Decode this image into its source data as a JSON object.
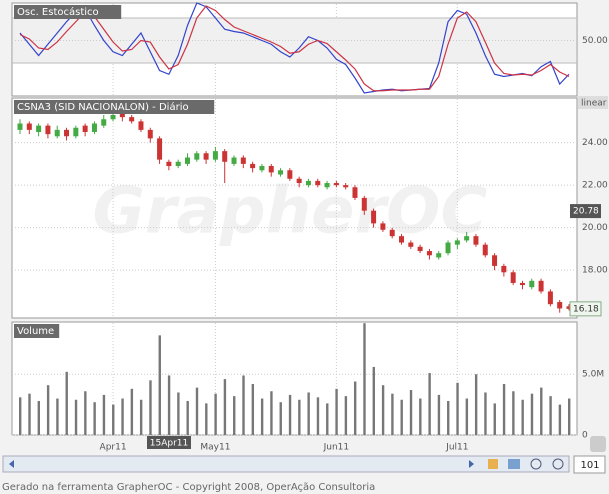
{
  "chart_data": [
    {
      "type": "line",
      "title": "Osc. Estocástico",
      "ylim": [
        -24,
        100
      ],
      "yticks": [
        {
          "value": 50,
          "label": "50.00"
        }
      ],
      "levels": [
        20,
        80
      ],
      "grid": true,
      "series": [
        {
          "name": "%K",
          "color": "#3344cc",
          "values": [
            60,
            45,
            30,
            45,
            60,
            75,
            88,
            92,
            70,
            50,
            35,
            30,
            45,
            60,
            35,
            10,
            5,
            30,
            70,
            100,
            95,
            80,
            65,
            62,
            60,
            55,
            50,
            45,
            35,
            28,
            40,
            55,
            50,
            40,
            25,
            18,
            0,
            -20,
            -18,
            -16,
            -15,
            -17,
            -16,
            -15,
            -14,
            20,
            75,
            90,
            85,
            60,
            30,
            5,
            2,
            4,
            6,
            3,
            15,
            22,
            -8,
            5
          ]
        },
        {
          "name": "%D",
          "color": "#cc3344",
          "values": [
            58,
            52,
            40,
            38,
            48,
            62,
            75,
            88,
            82,
            65,
            48,
            36,
            38,
            50,
            48,
            28,
            12,
            18,
            45,
            80,
            96,
            90,
            78,
            68,
            63,
            58,
            53,
            48,
            42,
            33,
            35,
            45,
            50,
            46,
            35,
            24,
            12,
            -8,
            -17,
            -17,
            -16,
            -16,
            -16,
            -15,
            -15,
            2,
            45,
            80,
            88,
            75,
            48,
            20,
            6,
            4,
            5,
            4,
            10,
            18,
            8,
            2
          ]
        }
      ]
    },
    {
      "type": "candlestick",
      "title": "CSNA3 (SID NACIONALON) - Diário",
      "scale": "linear",
      "ylim": [
        15.75,
        26.1
      ],
      "yticks": [
        {
          "value": 18,
          "label": "18.00"
        },
        {
          "value": 20,
          "label": "20.00"
        },
        {
          "value": 22,
          "label": "22.00"
        },
        {
          "value": 24,
          "label": "24.00"
        }
      ],
      "grid": true,
      "up_color": "#44aa44",
      "down_color": "#cc3333",
      "categories": [
        null,
        null,
        null,
        null,
        null,
        null,
        null,
        null,
        null,
        null,
        "Apr11",
        null,
        null,
        null,
        null,
        null,
        null,
        null,
        null,
        null,
        null,
        "May11",
        null,
        null,
        null,
        null,
        null,
        null,
        null,
        null,
        null,
        null,
        null,
        null,
        "Jun11",
        null,
        null,
        null,
        null,
        null,
        null,
        null,
        null,
        null,
        null,
        null,
        null,
        "Jul11",
        null,
        null,
        null,
        null,
        null,
        null,
        null,
        null,
        null,
        null,
        null,
        null
      ],
      "open": [
        24.6,
        24.9,
        24.5,
        24.8,
        24.3,
        24.6,
        24.3,
        24.8,
        24.5,
        24.8,
        25.1,
        25.4,
        25.2,
        25.0,
        24.6,
        24.2,
        23.1,
        22.9,
        23.0,
        23.2,
        23.5,
        23.2,
        23.6,
        23.0,
        23.3,
        23.0,
        22.7,
        22.9,
        22.5,
        22.7,
        22.3,
        22.0,
        22.2,
        21.9,
        22.1,
        22.0,
        21.9,
        21.4,
        20.8,
        20.2,
        19.9,
        19.6,
        19.3,
        19.1,
        18.9,
        18.6,
        18.8,
        19.2,
        19.4,
        19.6,
        19.2,
        18.7,
        18.2,
        17.9,
        17.4,
        17.2,
        17.5,
        17.0,
        16.5,
        16.3
      ],
      "high": [
        25.1,
        25.0,
        24.9,
        24.9,
        24.8,
        24.7,
        24.8,
        24.9,
        25.0,
        25.3,
        25.5,
        25.5,
        25.3,
        25.1,
        24.7,
        24.3,
        23.2,
        23.2,
        23.5,
        23.6,
        23.6,
        23.8,
        23.7,
        23.4,
        23.4,
        23.1,
        23.0,
        23.0,
        22.8,
        22.8,
        22.4,
        22.3,
        22.3,
        22.2,
        22.2,
        22.1,
        22.0,
        21.5,
        20.9,
        20.3,
        20.0,
        19.7,
        19.4,
        19.2,
        19.0,
        18.9,
        19.4,
        19.5,
        19.8,
        19.7,
        19.3,
        18.8,
        18.3,
        18.0,
        17.5,
        17.6,
        17.6,
        17.1,
        16.6,
        16.4
      ],
      "low": [
        24.4,
        24.4,
        24.3,
        24.2,
        24.2,
        24.1,
        24.2,
        24.3,
        24.4,
        24.7,
        25.0,
        25.0,
        24.9,
        24.5,
        24.0,
        23.0,
        22.7,
        22.8,
        22.9,
        23.1,
        23.0,
        23.1,
        22.1,
        22.9,
        22.8,
        22.6,
        22.6,
        22.4,
        22.4,
        22.2,
        21.9,
        21.9,
        21.9,
        21.8,
        21.9,
        21.8,
        21.3,
        20.6,
        20.0,
        19.8,
        19.5,
        19.2,
        19.0,
        18.8,
        18.5,
        18.5,
        18.7,
        19.0,
        19.3,
        19.1,
        18.6,
        18.0,
        17.7,
        17.3,
        17.1,
        17.1,
        16.9,
        16.3,
        16.0,
        16.1
      ],
      "close": [
        24.9,
        24.6,
        24.8,
        24.4,
        24.6,
        24.3,
        24.7,
        24.5,
        24.9,
        25.1,
        25.3,
        25.2,
        25.0,
        24.6,
        24.2,
        23.2,
        22.9,
        23.1,
        23.3,
        23.5,
        23.2,
        23.6,
        23.1,
        23.3,
        23.0,
        22.8,
        22.9,
        22.6,
        22.7,
        22.3,
        22.1,
        22.2,
        22.0,
        22.1,
        22.0,
        21.9,
        21.4,
        20.8,
        20.2,
        19.9,
        19.6,
        19.3,
        19.1,
        18.9,
        18.7,
        18.8,
        19.3,
        19.4,
        19.6,
        19.2,
        18.7,
        18.2,
        17.9,
        17.4,
        17.3,
        17.5,
        17.0,
        16.4,
        16.2,
        16.18
      ],
      "cursor": {
        "date": "15Apr11",
        "price": {
          "value": 20.78,
          "label": "20.78"
        }
      }
    },
    {
      "type": "bar",
      "title": "Volume",
      "color": "#777777",
      "ylim": [
        0,
        9300000
      ],
      "yticks": [
        0,
        {
          "value": 5000000,
          "label": "5.0M"
        }
      ],
      "grid": true,
      "values": [
        3100000,
        3400000,
        2800000,
        4100000,
        3000000,
        5200000,
        2900000,
        3600000,
        2700000,
        3300000,
        2500000,
        3000000,
        3800000,
        2900000,
        4500000,
        8200000,
        4900000,
        3500000,
        2800000,
        3900000,
        2600000,
        3400000,
        4600000,
        3200000,
        4900000,
        4200000,
        3000000,
        3600000,
        2700000,
        3300000,
        2900000,
        3500000,
        3100000,
        2600000,
        3800000,
        3200000,
        4400000,
        9200000,
        5600000,
        4100000,
        3400000,
        2900000,
        3700000,
        3000000,
        5100000,
        3300000,
        2800000,
        4300000,
        3000000,
        5000000,
        3500000,
        2600000,
        4200000,
        3600000,
        2900000,
        3400000,
        3900000,
        3200000,
        2500000,
        3000000
      ]
    }
  ],
  "ui": {
    "watermark": "GrapherOC",
    "zoom": "101",
    "footer": "Gerado na ferramenta GrapherOC - Copyright 2008, OperAção Consultoria"
  }
}
